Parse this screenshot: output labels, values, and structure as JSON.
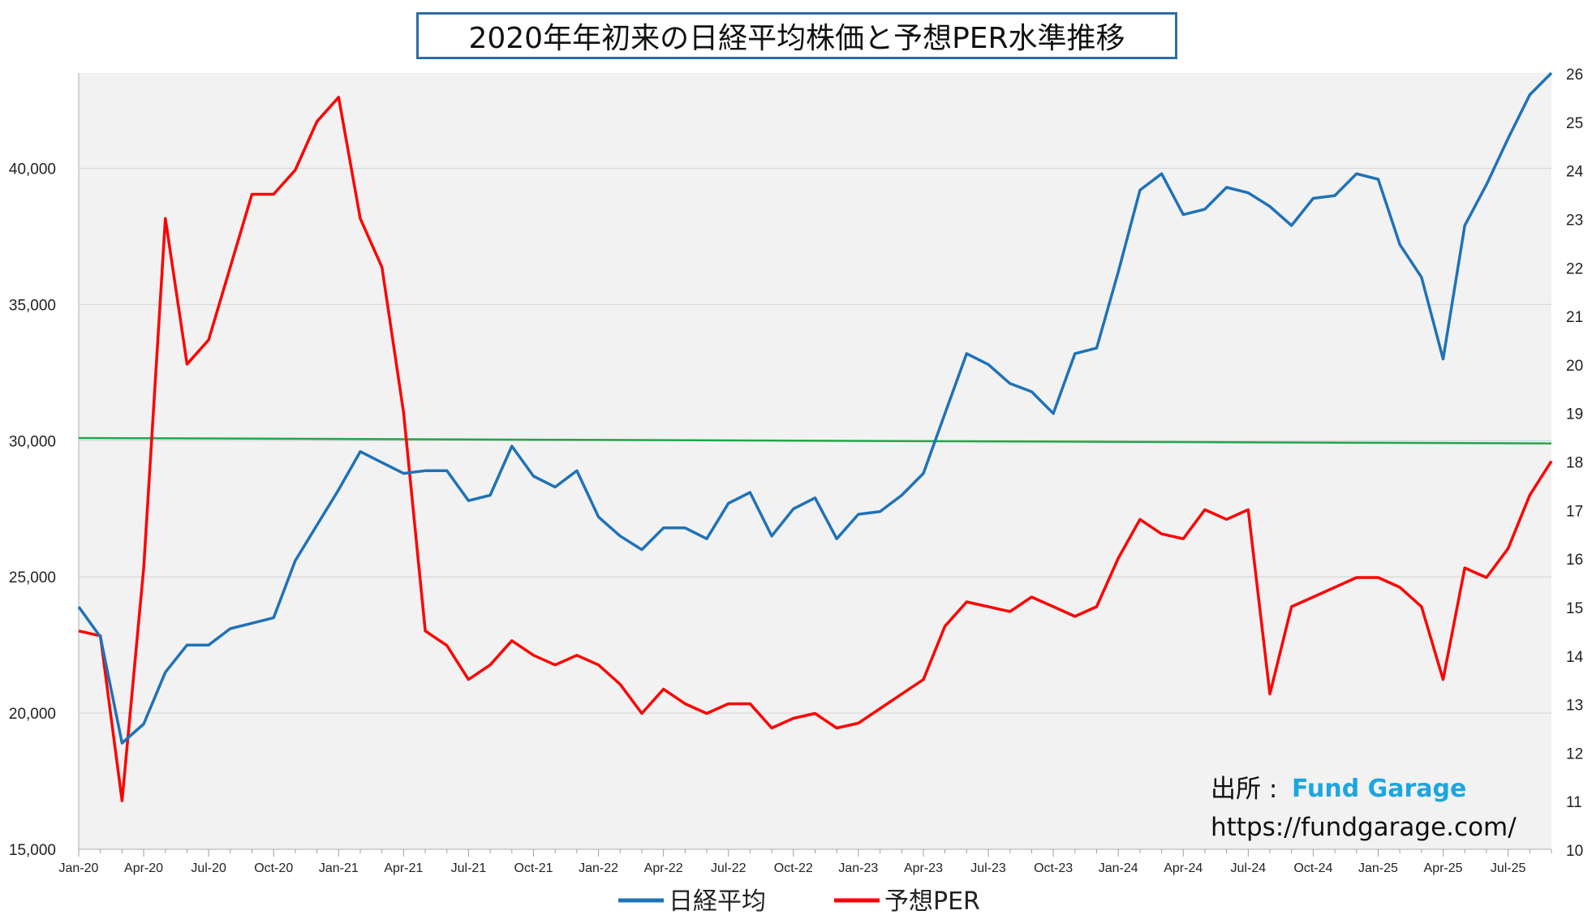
{
  "title": "2020年年初来の日経平均株価と予想PER水準推移",
  "source": {
    "label": "出所 :",
    "brand": "Fund Garage",
    "url": "https://fundgarage.com/"
  },
  "colors": {
    "nikkei": "#1f72b8",
    "per": "#ff0000",
    "ref_line": "#22a64a",
    "plot_bg": "#f2f2f2",
    "grid": "#d9d9d9"
  },
  "chart_data": {
    "type": "line",
    "x": [
      "Jan-20",
      "Feb-20",
      "Mar-20",
      "Apr-20",
      "May-20",
      "Jun-20",
      "Jul-20",
      "Aug-20",
      "Sep-20",
      "Oct-20",
      "Nov-20",
      "Dec-20",
      "Jan-21",
      "Feb-21",
      "Mar-21",
      "Apr-21",
      "May-21",
      "Jun-21",
      "Jul-21",
      "Aug-21",
      "Sep-21",
      "Oct-21",
      "Nov-21",
      "Dec-21",
      "Jan-22",
      "Feb-22",
      "Mar-22",
      "Apr-22",
      "May-22",
      "Jun-22",
      "Jul-22",
      "Aug-22",
      "Sep-22",
      "Oct-22",
      "Nov-22",
      "Dec-22",
      "Jan-23",
      "Feb-23",
      "Mar-23",
      "Apr-23",
      "May-23",
      "Jun-23",
      "Jul-23",
      "Aug-23",
      "Sep-23",
      "Oct-23",
      "Nov-23",
      "Dec-23",
      "Jan-24",
      "Feb-24",
      "Mar-24",
      "Apr-24",
      "May-24",
      "Jun-24",
      "Jul-24",
      "Aug-24",
      "Sep-24",
      "Oct-24",
      "Nov-24",
      "Dec-24",
      "Jan-25",
      "Feb-25",
      "Mar-25",
      "Apr-25",
      "May-25",
      "Jun-25",
      "Jul-25",
      "Aug-25",
      "Sep-25"
    ],
    "x_tick_labels": [
      "Jan-20",
      "Apr-20",
      "Jul-20",
      "Oct-20",
      "Jan-21",
      "Apr-21",
      "Jul-21",
      "Oct-21",
      "Jan-22",
      "Apr-22",
      "Jul-22",
      "Oct-22",
      "Jan-23",
      "Apr-23",
      "Jul-23",
      "Oct-23",
      "Jan-24",
      "Apr-24",
      "Jul-24",
      "Oct-24",
      "Jan-25",
      "Apr-25",
      "Jul-25"
    ],
    "y_left": {
      "min": 15000,
      "max": 43500,
      "ticks": [
        15000,
        20000,
        25000,
        30000,
        35000,
        40000
      ],
      "tick_labels": [
        "15,000",
        "20,000",
        "25,000",
        "30,000",
        "35,000",
        "40,000"
      ]
    },
    "y_right": {
      "min": 10,
      "max": 26,
      "ticks": [
        10,
        11,
        12,
        13,
        14,
        15,
        16,
        17,
        18,
        19,
        20,
        21,
        22,
        23,
        24,
        25,
        26
      ],
      "tick_labels": [
        "10",
        "11",
        "12",
        "13",
        "14",
        "15",
        "16",
        "17",
        "18",
        "19",
        "20",
        "21",
        "22",
        "23",
        "24",
        "25",
        "26"
      ]
    },
    "series": [
      {
        "name": "日経平均",
        "axis": "left",
        "values": [
          23900,
          22800,
          18900,
          19600,
          21500,
          22500,
          22500,
          23100,
          23300,
          23500,
          25600,
          26900,
          28200,
          29600,
          29200,
          28800,
          28900,
          28900,
          27800,
          28000,
          29800,
          28700,
          28300,
          28900,
          27200,
          26500,
          26000,
          26800,
          26800,
          26400,
          27700,
          28100,
          26500,
          27500,
          27900,
          26400,
          27300,
          27400,
          28000,
          28800,
          31000,
          33200,
          32800,
          32100,
          31800,
          31000,
          33200,
          33400,
          36200,
          39200,
          39800,
          38300,
          38500,
          39300,
          39100,
          38600,
          37900,
          38900,
          39000,
          39800,
          39600,
          37200,
          36000,
          33000,
          37900,
          39400,
          41100,
          42700,
          44500
        ]
      },
      {
        "name": "予想PER",
        "axis": "right",
        "values": [
          14.5,
          14.4,
          11.0,
          15.8,
          23.0,
          20.0,
          20.5,
          22.0,
          23.5,
          23.5,
          24.0,
          25.0,
          25.5,
          23.0,
          22.0,
          19.0,
          14.5,
          14.2,
          13.5,
          13.8,
          14.3,
          14.0,
          13.8,
          14.0,
          13.8,
          13.4,
          12.8,
          13.3,
          13.0,
          12.8,
          13.0,
          13.0,
          12.5,
          12.7,
          12.8,
          12.5,
          12.6,
          12.9,
          13.2,
          13.5,
          14.6,
          15.1,
          15.0,
          14.9,
          15.2,
          15.0,
          14.8,
          15.0,
          16.0,
          16.8,
          16.5,
          16.4,
          17.0,
          16.8,
          17.0,
          13.2,
          15.0,
          15.2,
          15.4,
          15.6,
          15.6,
          15.4,
          15.0,
          13.5,
          15.8,
          15.6,
          16.2,
          17.3,
          18.0
        ]
      }
    ],
    "reference_line": {
      "axis": "left",
      "from": 30100,
      "to": 29900
    },
    "legend_placement": "bottom-center",
    "grid": true
  }
}
